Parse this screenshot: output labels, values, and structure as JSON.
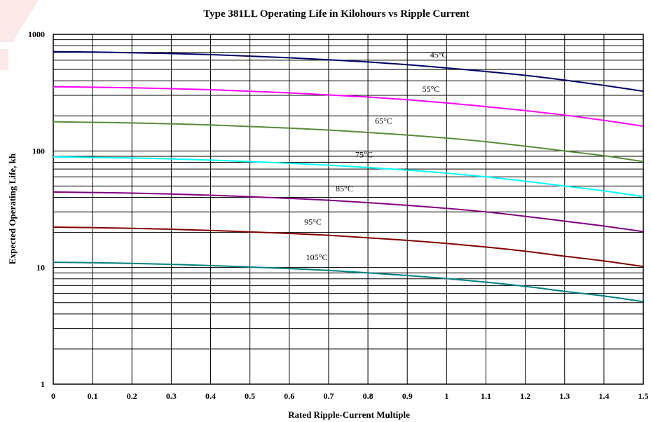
{
  "chart_data": {
    "type": "line",
    "title": "Type 381LL Operating Life in Kilohours vs Ripple Current",
    "xlabel": "Rated Ripple-Current Multiple",
    "ylabel": "Expected Operating Life, kh",
    "xlim": [
      0,
      1.5
    ],
    "ylim": [
      1,
      1000
    ],
    "y_scale": "log",
    "grid": true,
    "legend": "none",
    "x_ticks": [
      "0",
      "0.1",
      "0.2",
      "0.3",
      "0.4",
      "0.5",
      "0.6",
      "0.7",
      "0.8",
      "0.9",
      "1",
      "1.1",
      "1.2",
      "1.3",
      "1.4",
      "1.5"
    ],
    "y_ticks": [
      "1",
      "10",
      "100",
      "1000"
    ],
    "x": [
      0,
      0.1,
      0.2,
      0.3,
      0.4,
      0.5,
      0.6,
      0.7,
      0.8,
      0.9,
      1.0,
      1.1,
      1.2,
      1.3,
      1.4,
      1.5
    ],
    "series": [
      {
        "label": "45°C",
        "color": "#000066",
        "values": [
          710,
          705,
          695,
          685,
          670,
          650,
          630,
          605,
          580,
          550,
          515,
          480,
          445,
          405,
          365,
          325
        ]
      },
      {
        "label": "55°C",
        "color": "#ff00ff",
        "values": [
          355,
          352,
          348,
          342,
          335,
          325,
          315,
          302,
          290,
          275,
          258,
          240,
          222,
          203,
          183,
          163
        ]
      },
      {
        "label": "65°C",
        "color": "#5a8a3a",
        "values": [
          178,
          176,
          174,
          171,
          167,
          162,
          157,
          151,
          144,
          137,
          129,
          120,
          110,
          100,
          91,
          81
        ]
      },
      {
        "label": "75°C",
        "color": "#00ffff",
        "values": [
          89,
          88,
          87,
          85.5,
          83.5,
          81,
          78.5,
          75.5,
          72,
          68.5,
          64.5,
          60,
          55,
          50,
          45.5,
          40.5
        ]
      },
      {
        "label": "85°C",
        "color": "#800080",
        "values": [
          44.5,
          44,
          43.5,
          42.7,
          41.7,
          40.5,
          39.2,
          37.8,
          36,
          34.2,
          32.2,
          30,
          27.5,
          25,
          22.7,
          20.3
        ]
      },
      {
        "label": "95°C",
        "color": "#800000",
        "values": [
          22.2,
          22,
          21.7,
          21.3,
          20.8,
          20.2,
          19.6,
          18.9,
          18,
          17.1,
          16.1,
          15,
          13.8,
          12.5,
          11.4,
          10.2
        ]
      },
      {
        "label": "105°C",
        "color": "#008080",
        "values": [
          11.1,
          11,
          10.85,
          10.65,
          10.4,
          10.1,
          9.8,
          9.45,
          9,
          8.55,
          8.05,
          7.5,
          6.9,
          6.25,
          5.7,
          5.1
        ]
      }
    ]
  }
}
